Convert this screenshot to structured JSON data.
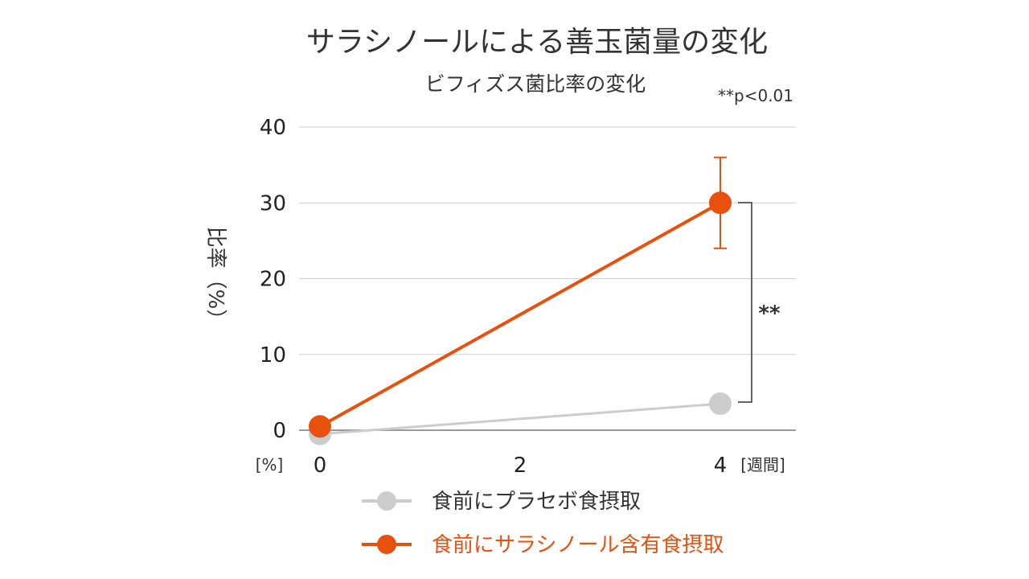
{
  "chart_data": {
    "type": "line",
    "title": "サラシノールによる善玉菌量の変化",
    "subtitle": "ビフィズス菌比率の変化",
    "significance_note": "**p<0.01",
    "ylabel": "比率（%）",
    "y_unit_label": "[%]",
    "x_unit_label": "[週間]",
    "x_ticks": [
      "0",
      "2",
      "4"
    ],
    "y_ticks": [
      "0",
      "10",
      "20",
      "30",
      "40"
    ],
    "xlim": [
      0,
      4.7
    ],
    "ylim": [
      0,
      40
    ],
    "grid": true,
    "legend_position": "bottom",
    "significance_marker": "**",
    "series": [
      {
        "name": "食前にプラセボ食摂取",
        "color": "#cccccc",
        "x": [
          0,
          4
        ],
        "y": [
          -0.5,
          3.5
        ]
      },
      {
        "name": "食前にサラシノール含有食摂取",
        "color": "#e8500e",
        "x": [
          0,
          4
        ],
        "y": [
          0.5,
          30
        ],
        "error_upper": [
          null,
          36
        ],
        "error_lower": [
          null,
          24
        ]
      }
    ]
  }
}
